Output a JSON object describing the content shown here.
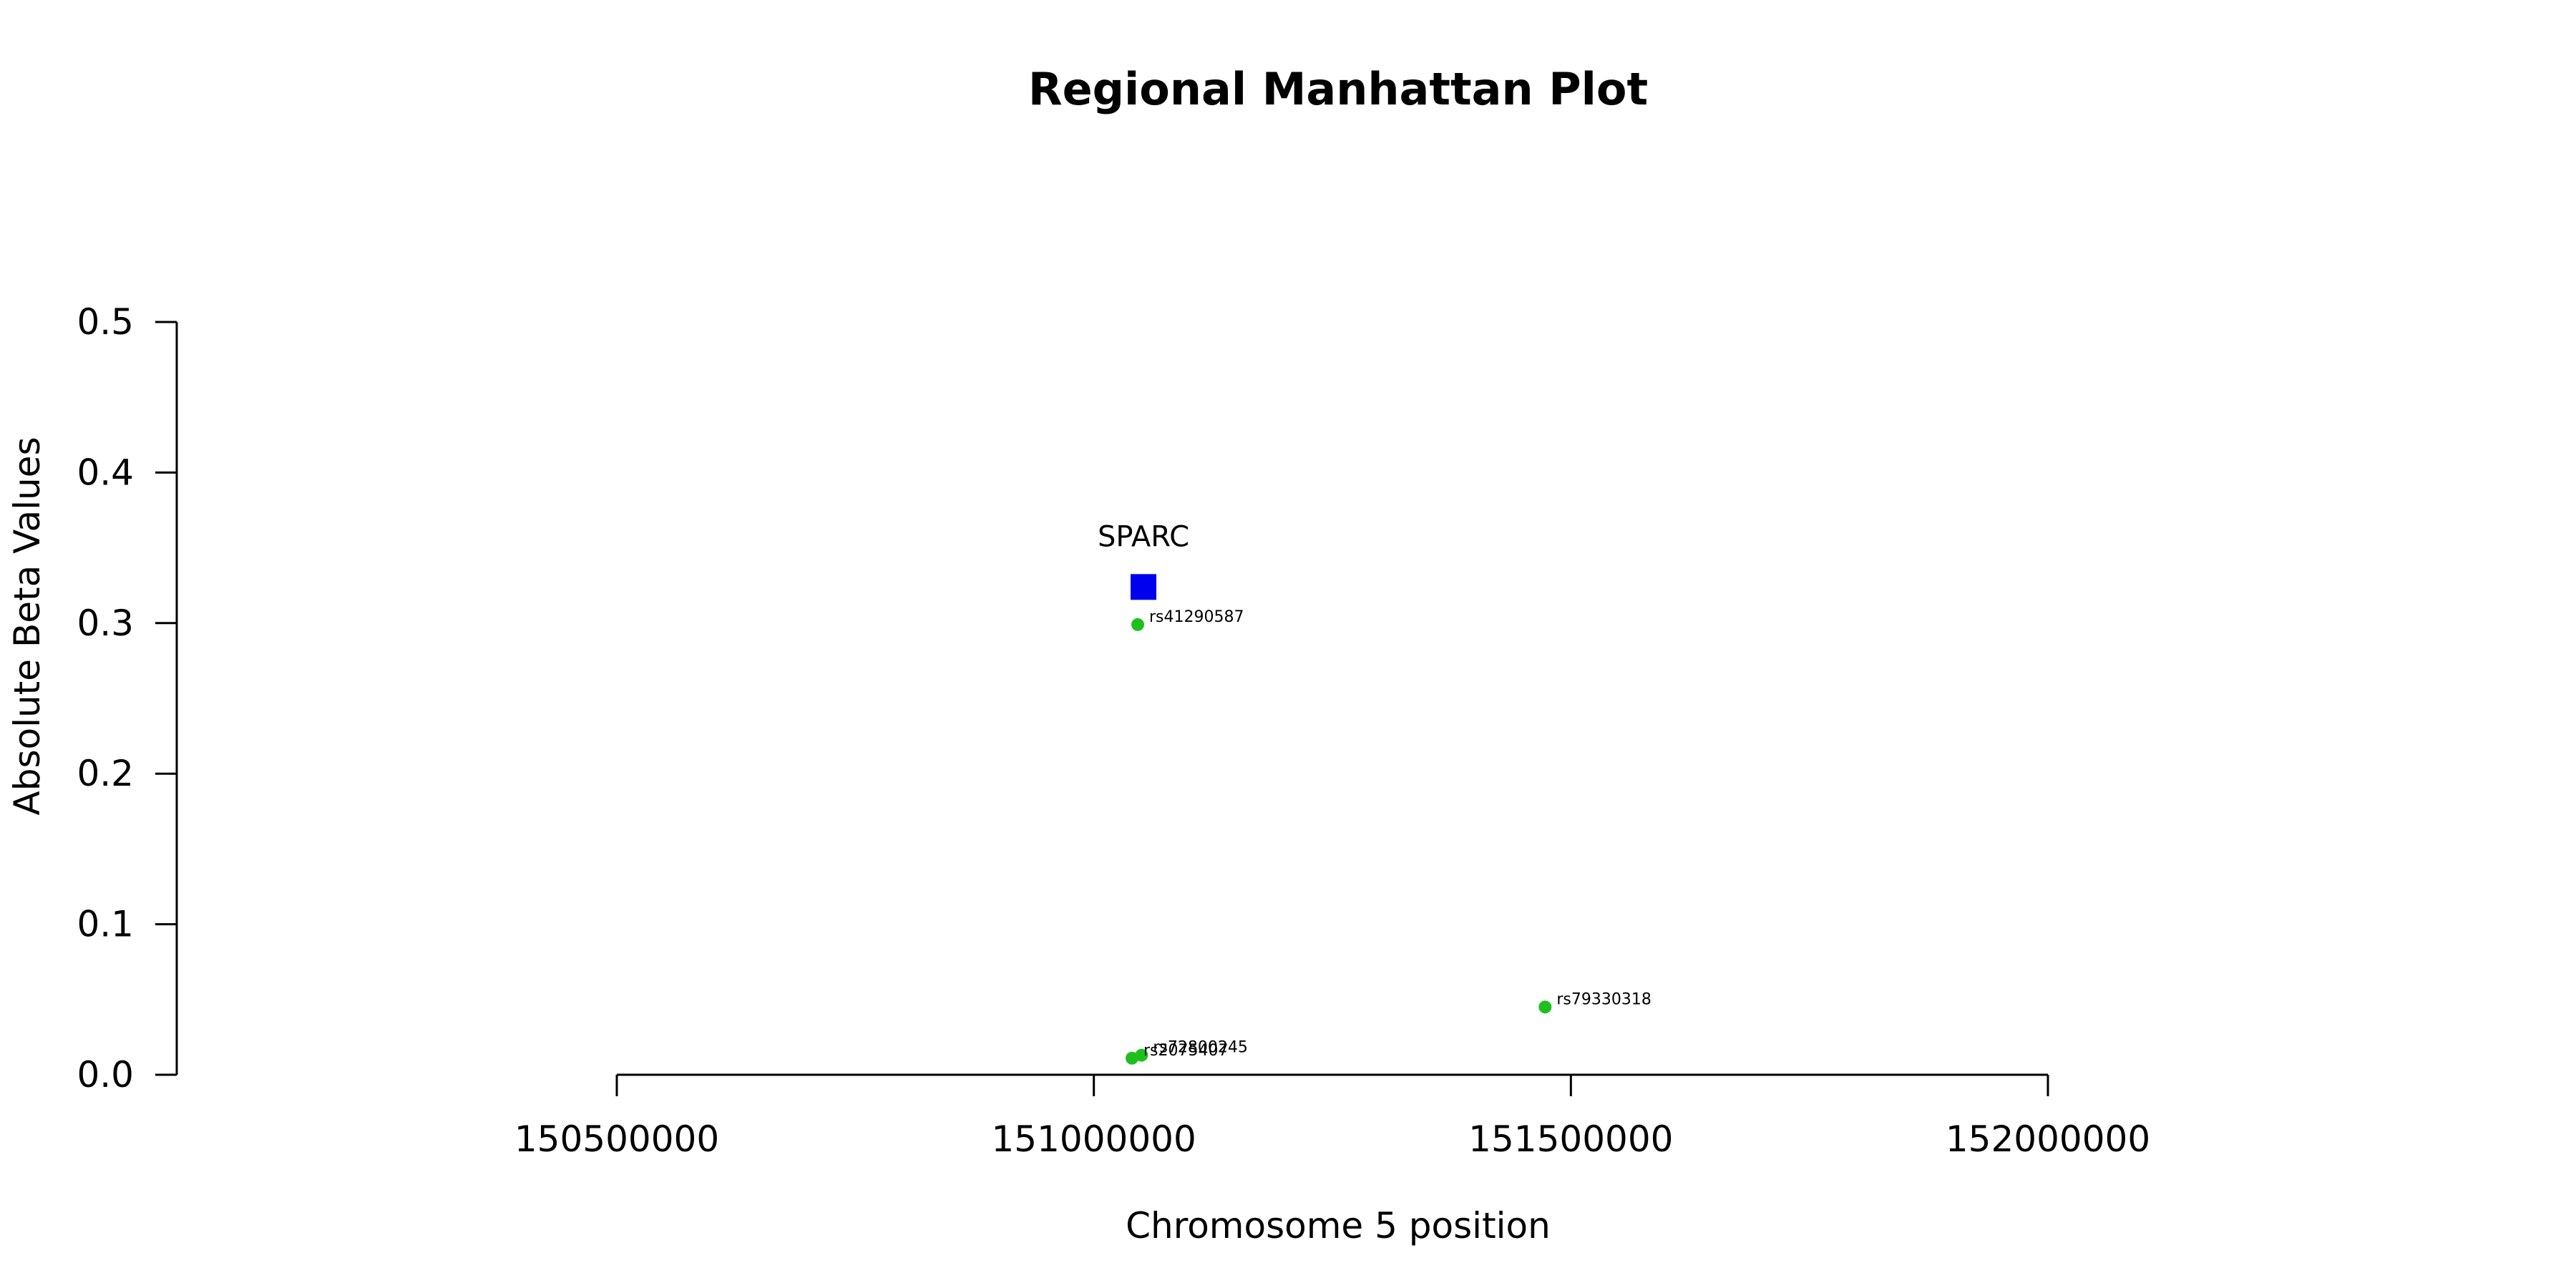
{
  "chart_data": {
    "type": "scatter",
    "title": "Regional Manhattan Plot",
    "xlabel": "Chromosome 5 position",
    "ylabel": "Absolute Beta Values",
    "xlim": [
      150500000,
      152000000
    ],
    "ylim": [
      0,
      0.5
    ],
    "x_ticks": [
      150500000,
      151000000,
      151500000,
      152000000
    ],
    "y_ticks": [
      0.0,
      0.1,
      0.2,
      0.3,
      0.4,
      0.5
    ],
    "x_tick_labels": [
      "150500000",
      "151000000",
      "151500000",
      "152000000"
    ],
    "y_tick_labels": [
      "0.0",
      "0.1",
      "0.2",
      "0.3",
      "0.4",
      "0.5"
    ],
    "grid": false,
    "series": [
      {
        "marker": "circle",
        "color": "#1ec01e",
        "points": [
          {
            "x": 151046000,
            "y": 0.299,
            "label": "rs41290587"
          },
          {
            "x": 151473000,
            "y": 0.045,
            "label": "rs79330318"
          },
          {
            "x": 151050000,
            "y": 0.013,
            "label": "rs72800245"
          },
          {
            "x": 151040000,
            "y": 0.011,
            "label": "rs2075407"
          }
        ]
      },
      {
        "marker": "square",
        "color": "#0000ee",
        "points": [
          {
            "x": 151052000,
            "y": 0.324,
            "label": "SPARC"
          }
        ]
      }
    ]
  }
}
